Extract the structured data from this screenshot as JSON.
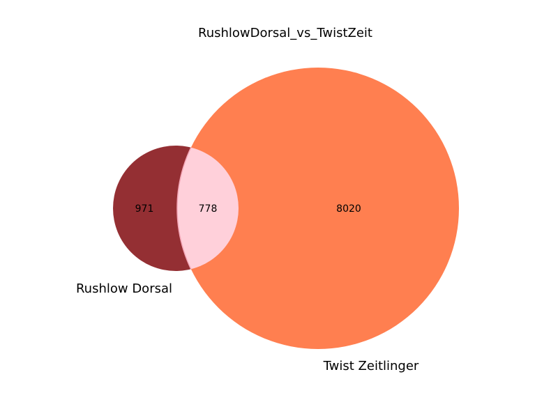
{
  "chart_data": {
    "type": "venn",
    "title": "RushlowDorsal_vs_TwistZeit",
    "sets": [
      {
        "name": "Rushlow Dorsal",
        "color": "#942F33"
      },
      {
        "name": "Twist Zeitlinger",
        "color": "#FF7F50"
      }
    ],
    "regions": {
      "only_a": 971,
      "both": 778,
      "only_b": 8020
    },
    "intersection_color": "#FFD0DA"
  }
}
